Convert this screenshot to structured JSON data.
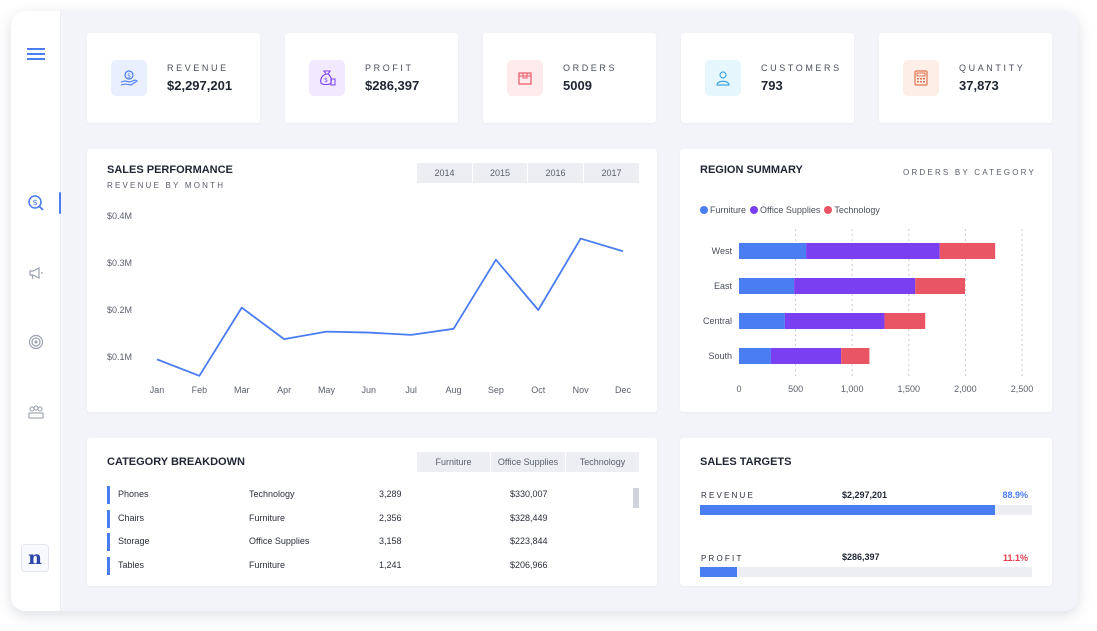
{
  "kpis": [
    {
      "label": "REVENUE",
      "value": "$2,297,201",
      "icon": "hand-coin-icon",
      "color": "#4a7cf2",
      "bg": "#e9efff"
    },
    {
      "label": "PROFIT",
      "value": "$286,397",
      "icon": "money-bag-icon",
      "color": "#7b3ff2",
      "bg": "#f1e9ff"
    },
    {
      "label": "ORDERS",
      "value": "5009",
      "icon": "box-icon",
      "color": "#ea5566",
      "bg": "#ffeaec"
    },
    {
      "label": "CUSTOMERS",
      "value": "793",
      "icon": "user-icon",
      "color": "#3fa8e0",
      "bg": "#e6f6fd"
    },
    {
      "label": "QUANTITY",
      "value": "37,873",
      "icon": "calculator-icon",
      "color": "#e2734f",
      "bg": "#fdeee7"
    }
  ],
  "sidebar": {
    "items": [
      {
        "icon": "menu-icon"
      },
      {
        "icon": "dollar-search-icon",
        "active": true
      },
      {
        "icon": "megaphone-icon"
      },
      {
        "icon": "target-icon"
      },
      {
        "icon": "team-icon"
      }
    ],
    "logo_text": "n"
  },
  "sales_performance": {
    "title": "SALES PERFORMANCE",
    "subtitle": "REVENUE BY MONTH",
    "years": [
      "2014",
      "2015",
      "2016",
      "2017"
    ],
    "chart_data": {
      "type": "line",
      "categories": [
        "Jan",
        "Feb",
        "Mar",
        "Apr",
        "May",
        "Jun",
        "Jul",
        "Aug",
        "Sep",
        "Oct",
        "Nov",
        "Dec"
      ],
      "values": [
        0.095,
        0.06,
        0.205,
        0.138,
        0.154,
        0.152,
        0.147,
        0.16,
        0.307,
        0.2,
        0.352,
        0.325
      ],
      "y_ticks": [
        "$0.1M",
        "$0.2M",
        "$0.3M",
        "$0.4M"
      ],
      "y_tick_values": [
        0.1,
        0.2,
        0.3,
        0.4
      ],
      "color": "#4a7cf2"
    }
  },
  "region_summary": {
    "title": "REGION SUMMARY",
    "subtitle": "ORDERS BY CATEGORY",
    "chart_data": {
      "type": "bar",
      "orientation": "horizontal",
      "stacked": true,
      "categories": [
        "West",
        "East",
        "Central",
        "South"
      ],
      "series": [
        {
          "name": "Furniture",
          "values": [
            593,
            487,
            405,
            282
          ],
          "color": "#4a7cf2"
        },
        {
          "name": "Office Supplies",
          "values": [
            1180,
            1070,
            880,
            620
          ],
          "color": "#7b3ff2"
        },
        {
          "name": "Technology",
          "values": [
            490,
            440,
            360,
            250
          ],
          "color": "#ea5566"
        }
      ],
      "x_ticks": [
        "0",
        "500",
        "1,000",
        "1,500",
        "2,000",
        "2,500"
      ],
      "x_tick_values": [
        0,
        500,
        1000,
        1500,
        2000,
        2500
      ],
      "xlim": [
        0,
        2500
      ],
      "grid": "vertical-dashed",
      "legend": "top-left"
    }
  },
  "category_breakdown": {
    "title": "CATEGORY BREAKDOWN",
    "tabs": [
      "Furniture",
      "Office Supplies",
      "Technology"
    ],
    "rows": [
      {
        "name": "Phones",
        "category": "Technology",
        "qty": "3,289",
        "sales": "$330,007"
      },
      {
        "name": "Chairs",
        "category": "Furniture",
        "qty": "2,356",
        "sales": "$328,449"
      },
      {
        "name": "Storage",
        "category": "Office Supplies",
        "qty": "3,158",
        "sales": "$223,844"
      },
      {
        "name": "Tables",
        "category": "Furniture",
        "qty": "1,241",
        "sales": "$206,966"
      }
    ]
  },
  "sales_targets": {
    "title": "SALES TARGETS",
    "items": [
      {
        "label": "REVENUE",
        "value": "$2,297,201",
        "pct": "88.9%",
        "fraction": 0.889,
        "color": "#4a7cf2",
        "pct_color": "#4a7cf2"
      },
      {
        "label": "PROFIT",
        "value": "$286,397",
        "pct": "11.1%",
        "fraction": 0.111,
        "color": "#4a7cf2",
        "pct_color": "#ea3a4f"
      }
    ]
  }
}
